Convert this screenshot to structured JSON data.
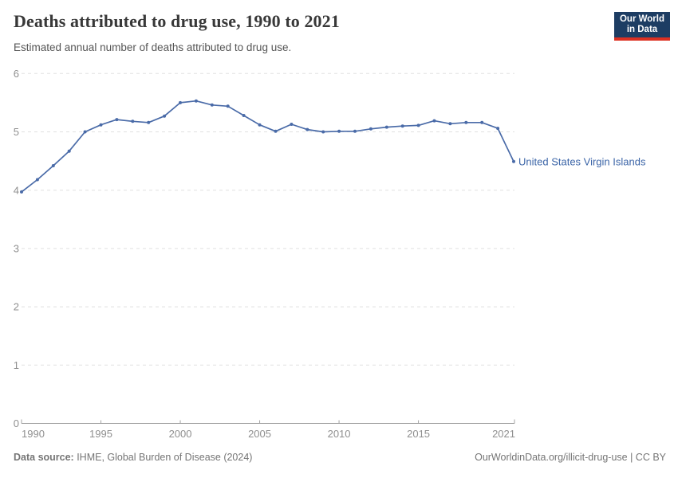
{
  "header": {
    "title": "Deaths attributed to drug use, 1990 to 2021",
    "subtitle": "Estimated annual number of deaths attributed to drug use."
  },
  "logo": {
    "line1": "Our World",
    "line2": "in Data",
    "bg_color": "#1d3d63",
    "accent_color": "#dc3022"
  },
  "chart_data": {
    "type": "line",
    "title": "Deaths attributed to drug use, 1990 to 2021",
    "xlabel": "",
    "ylabel": "",
    "xlim": [
      1990,
      2021
    ],
    "ylim": [
      0,
      6
    ],
    "grid": "horizontal dashed",
    "legend_position": "end-of-line label",
    "x_ticks": [
      1990,
      1995,
      2000,
      2005,
      2010,
      2015,
      2021
    ],
    "y_ticks": [
      0,
      1,
      2,
      3,
      4,
      5,
      6
    ],
    "series": [
      {
        "name": "United States Virgin Islands",
        "x": [
          1990,
          1991,
          1992,
          1993,
          1994,
          1995,
          1996,
          1997,
          1998,
          1999,
          2000,
          2001,
          2002,
          2003,
          2004,
          2005,
          2006,
          2007,
          2008,
          2009,
          2010,
          2011,
          2012,
          2013,
          2014,
          2015,
          2016,
          2017,
          2018,
          2019,
          2020,
          2021
        ],
        "values": [
          3.97,
          4.18,
          4.42,
          4.67,
          5.0,
          5.12,
          5.21,
          5.18,
          5.16,
          5.27,
          5.5,
          5.53,
          5.46,
          5.44,
          5.28,
          5.12,
          5.01,
          5.13,
          5.04,
          5.0,
          5.01,
          5.01,
          5.05,
          5.08,
          5.1,
          5.11,
          5.19,
          5.14,
          5.16,
          5.16,
          5.06,
          4.49
        ]
      }
    ],
    "entity_label": "United States Virgin Islands"
  },
  "colors": {
    "line": "#4a6ba8",
    "entity_label": "#3d66a8",
    "grid": "#e0e0e0",
    "axis": "#a3a3a3",
    "tick_text": "#8f8f8f"
  },
  "footer": {
    "source_label": "Data source:",
    "source_value": " IHME, Global Burden of Disease (2024)",
    "link": "OurWorldinData.org/illicit-drug-use | CC BY"
  }
}
